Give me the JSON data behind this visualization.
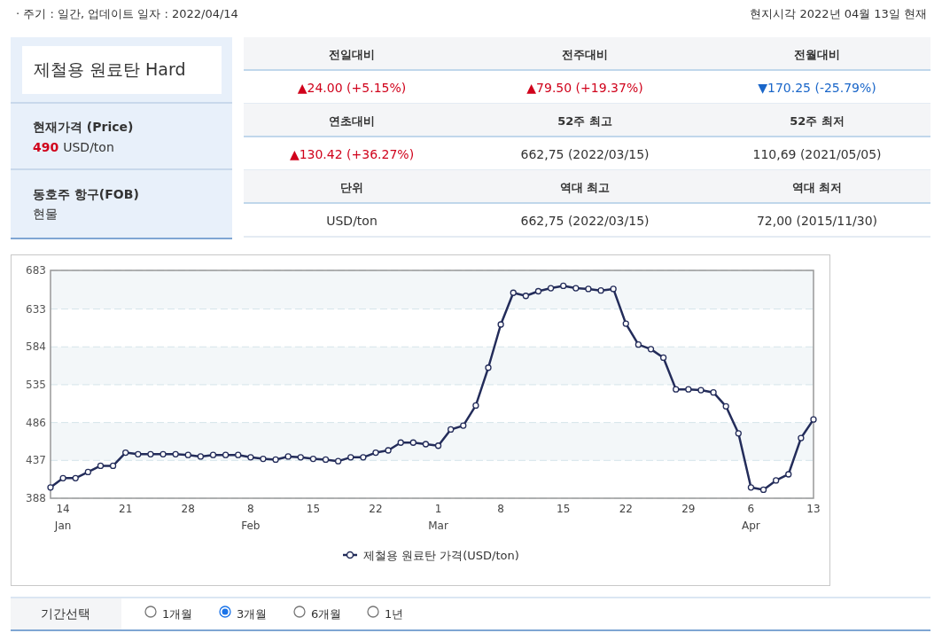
{
  "chart_data": {
    "type": "line",
    "title": "제철용 원료탄 Hard",
    "annotations": [
      "· 주기 : 일간, 업데이트 일자 : 2022/04/14",
      "현지시각 2022년 04월 13일 현재",
      "현재가격 (Price)",
      "490",
      "USD/ton",
      "동호주 항구(FOB)",
      "현물",
      "전일대비",
      "전주대비",
      "전월대비",
      "▲24.00 (+5.15%)",
      "▲79.50 (+19.37%)",
      "▼170.25 (-25.79%)",
      "연초대비",
      "52주 최고",
      "52주 최저",
      "▲130.42 (+36.27%)",
      "662,75 (2022/03/15)",
      "110,69 (2021/05/05)",
      "단위",
      "역대 최고",
      "역대 최저",
      "USD/ton",
      "662,75 (2022/03/15)",
      "72,00 (2015/11/30)",
      "기간선택",
      "1개월",
      "3개월",
      "6개월",
      "1년"
    ],
    "categories": [
      null,
      "14\nJan",
      null,
      null,
      null,
      null,
      "21",
      null,
      null,
      null,
      null,
      "28",
      null,
      null,
      null,
      null,
      "8\nFeb",
      null,
      null,
      null,
      null,
      "15",
      null,
      null,
      null,
      null,
      "22",
      null,
      null,
      null,
      null,
      "1\nMar",
      null,
      null,
      null,
      null,
      "8",
      null,
      null,
      null,
      null,
      "15",
      null,
      null,
      null,
      null,
      "22",
      null,
      null,
      null,
      null,
      "29",
      null,
      null,
      null,
      null,
      "6\nApr",
      null,
      null,
      null,
      null,
      "13"
    ],
    "series": [
      {
        "name": "제철용 원료탄 가격(USD/ton)",
        "color": "#232c5a",
        "values": [
          402,
          414,
          414,
          422,
          430,
          430,
          447,
          445,
          445,
          445,
          445,
          444,
          442,
          444,
          444,
          444,
          441,
          439,
          438,
          442,
          441,
          439,
          438,
          436,
          441,
          441,
          447,
          450,
          460,
          460,
          458,
          456,
          477,
          482,
          508,
          557,
          613,
          654,
          650,
          656,
          660,
          663,
          660,
          659,
          657,
          659,
          614,
          587,
          581,
          570,
          529,
          529,
          528,
          525,
          507,
          472,
          402,
          399,
          411,
          419,
          466,
          490
        ]
      }
    ],
    "ylim": [
      388,
      683
    ],
    "yticks": [
      388,
      437,
      486,
      535,
      584,
      633,
      683
    ],
    "bands": [
      {
        "axis": "y",
        "from": 633,
        "to": 683,
        "color": "#f3f7f9"
      },
      {
        "axis": "y",
        "from": 535,
        "to": 584,
        "color": "#f3f7f9"
      },
      {
        "axis": "y",
        "from": 437,
        "to": 486,
        "color": "#f3f7f9"
      }
    ],
    "grid": "y",
    "legend": "bottom",
    "marker": "circle",
    "line_style": "solid"
  }
}
